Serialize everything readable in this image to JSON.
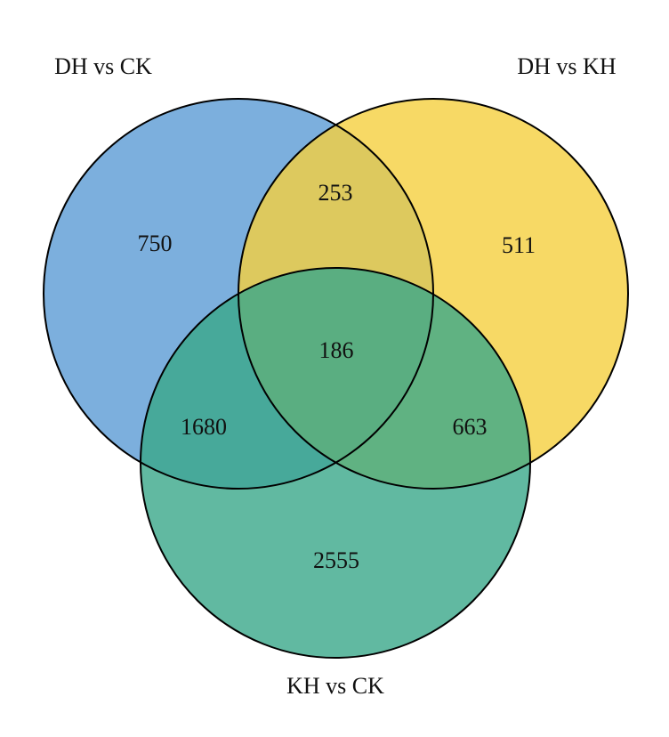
{
  "chart_data": {
    "type": "venn",
    "sets": [
      {
        "name": "DH vs CK",
        "color": "#5b9bd5"
      },
      {
        "name": "DH vs KH",
        "color": "#f5cf3f"
      },
      {
        "name": "KH vs CK",
        "color": "#3aa88a"
      }
    ],
    "counts": {
      "a_only": 750,
      "b_only": 511,
      "c_only": 2555,
      "ab": 253,
      "ac": 1680,
      "bc": 663,
      "abc": 186
    }
  }
}
